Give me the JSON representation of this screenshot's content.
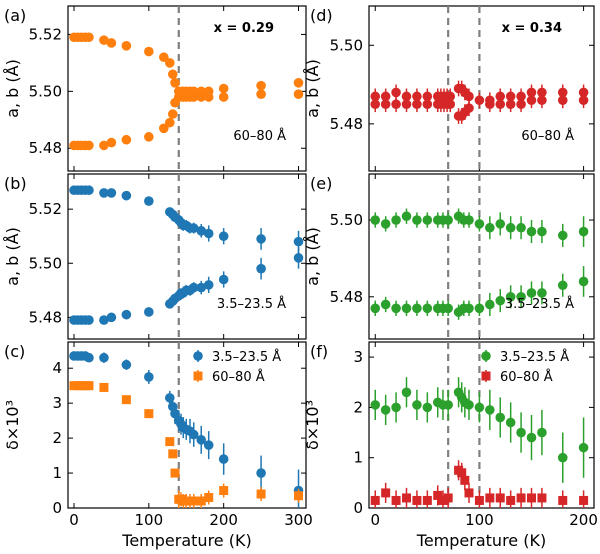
{
  "colors": {
    "blue": "#1f77b4",
    "orange": "#ff7f0e",
    "green": "#2ca02c",
    "red": "#d62728",
    "dashed": "#808080"
  },
  "chart_data": [
    {
      "panel": "(a)",
      "type": "scatter",
      "annotation_bold": "x = 0.29",
      "annotation": "60–80 Å",
      "ylabel": "a, b (Å)",
      "ylim": [
        5.472,
        5.53
      ],
      "yticks": [
        "5.48",
        "5.50",
        "5.52"
      ],
      "xlim": [
        -8,
        310
      ],
      "vlines": [
        140
      ],
      "series": [
        {
          "color": "orange",
          "marker": "circle",
          "x": [
            0,
            5,
            10,
            15,
            20,
            40,
            50,
            70,
            100,
            120,
            128,
            132,
            135,
            140,
            145,
            150,
            155,
            160,
            170,
            180,
            200,
            250,
            300
          ],
          "y": [
            5.519,
            5.519,
            5.519,
            5.519,
            5.519,
            5.518,
            5.517,
            5.516,
            5.514,
            5.512,
            5.51,
            5.506,
            5.503,
            5.5,
            5.5,
            5.5,
            5.5,
            5.5,
            5.5,
            5.5,
            5.501,
            5.502,
            5.503
          ]
        },
        {
          "color": "orange",
          "marker": "circle",
          "x": [
            0,
            5,
            10,
            15,
            20,
            40,
            50,
            70,
            100,
            120,
            128,
            132,
            135,
            140,
            145,
            150,
            155,
            160,
            170,
            180,
            200,
            250,
            300
          ],
          "y": [
            5.481,
            5.481,
            5.481,
            5.481,
            5.481,
            5.481,
            5.482,
            5.483,
            5.484,
            5.487,
            5.489,
            5.492,
            5.496,
            5.498,
            5.498,
            5.498,
            5.498,
            5.498,
            5.498,
            5.498,
            5.498,
            5.499,
            5.499
          ]
        }
      ]
    },
    {
      "panel": "(b)",
      "type": "scatter",
      "annotation": "3.5–23.5 Å",
      "ylabel": "a, b (Å)",
      "ylim": [
        5.472,
        5.533
      ],
      "yticks": [
        "5.48",
        "5.50",
        "5.52"
      ],
      "xlim": [
        -8,
        310
      ],
      "vlines": [
        140
      ],
      "series": [
        {
          "color": "blue",
          "marker": "circle",
          "x": [
            0,
            5,
            10,
            15,
            20,
            40,
            50,
            70,
            100,
            128,
            132,
            135,
            140,
            143,
            146,
            150,
            155,
            160,
            170,
            180,
            200,
            250,
            300
          ],
          "y": [
            5.527,
            5.527,
            5.527,
            5.527,
            5.527,
            5.526,
            5.526,
            5.525,
            5.523,
            5.519,
            5.518,
            5.517,
            5.516,
            5.515,
            5.514,
            5.514,
            5.513,
            5.513,
            5.512,
            5.511,
            5.51,
            5.509,
            5.508
          ],
          "err": [
            0.0005,
            0.0005,
            0.0005,
            0.0005,
            0.0005,
            0.0005,
            0.0005,
            0.0005,
            0.0005,
            0.001,
            0.001,
            0.001,
            0.0015,
            0.0015,
            0.002,
            0.002,
            0.002,
            0.002,
            0.0025,
            0.003,
            0.003,
            0.004,
            0.004
          ]
        },
        {
          "color": "blue",
          "marker": "circle",
          "x": [
            0,
            5,
            10,
            15,
            20,
            40,
            50,
            70,
            100,
            128,
            132,
            135,
            140,
            143,
            146,
            150,
            155,
            160,
            170,
            180,
            200,
            250,
            300
          ],
          "y": [
            5.479,
            5.479,
            5.479,
            5.479,
            5.479,
            5.479,
            5.48,
            5.481,
            5.482,
            5.485,
            5.486,
            5.487,
            5.488,
            5.489,
            5.489,
            5.49,
            5.49,
            5.491,
            5.491,
            5.492,
            5.494,
            5.498,
            5.502
          ],
          "err": [
            0.0005,
            0.0005,
            0.0005,
            0.0005,
            0.0005,
            0.0005,
            0.0005,
            0.0005,
            0.0005,
            0.001,
            0.001,
            0.001,
            0.0015,
            0.0015,
            0.002,
            0.002,
            0.002,
            0.002,
            0.0025,
            0.003,
            0.003,
            0.004,
            0.004
          ]
        }
      ]
    },
    {
      "panel": "(c)",
      "type": "scatter",
      "ylabel": "δ×10³",
      "ylim": [
        0,
        4.75
      ],
      "yticks": [
        "0",
        "1",
        "2",
        "3",
        "4"
      ],
      "xlabel": "Temperature (K)",
      "xlim": [
        -8,
        310
      ],
      "xticks": [
        "0",
        "100",
        "200",
        "300"
      ],
      "vlines": [
        140
      ],
      "legend": [
        "3.5–23.5 Å",
        "60–80 Å"
      ],
      "legend_position": "top-right",
      "series": [
        {
          "name": "3.5–23.5 Å",
          "color": "blue",
          "marker": "circle",
          "x": [
            0,
            5,
            10,
            15,
            20,
            40,
            70,
            100,
            128,
            132,
            135,
            140,
            143,
            146,
            150,
            155,
            160,
            170,
            180,
            200,
            250,
            300
          ],
          "y": [
            4.35,
            4.35,
            4.35,
            4.35,
            4.3,
            4.3,
            4.1,
            3.75,
            3.15,
            2.9,
            2.7,
            2.5,
            2.4,
            2.3,
            2.25,
            2.2,
            2.1,
            1.95,
            1.8,
            1.4,
            1.0,
            0.5
          ],
          "err": [
            0.1,
            0.1,
            0.1,
            0.1,
            0.1,
            0.15,
            0.15,
            0.2,
            0.2,
            0.25,
            0.3,
            0.3,
            0.3,
            0.3,
            0.3,
            0.35,
            0.35,
            0.4,
            0.4,
            0.45,
            0.5,
            0.6
          ]
        },
        {
          "name": "60–80 Å",
          "color": "orange",
          "marker": "square",
          "x": [
            0,
            5,
            10,
            15,
            20,
            40,
            70,
            100,
            128,
            132,
            135,
            140,
            143,
            146,
            150,
            155,
            160,
            170,
            180,
            200,
            250,
            300
          ],
          "y": [
            3.5,
            3.5,
            3.5,
            3.5,
            3.5,
            3.45,
            3.1,
            2.7,
            1.9,
            1.55,
            1.0,
            0.25,
            0.25,
            0.2,
            0.2,
            0.2,
            0.2,
            0.2,
            0.3,
            0.5,
            0.4,
            0.35
          ],
          "err": [
            0,
            0,
            0,
            0,
            0,
            0,
            0,
            0,
            0,
            0,
            0,
            0.25,
            0.2,
            0.2,
            0.2,
            0.2,
            0.2,
            0.2,
            0.2,
            0.2,
            0.2,
            0.2
          ]
        }
      ]
    },
    {
      "panel": "(d)",
      "type": "scatter",
      "annotation_bold": "x = 0.34",
      "annotation": "60–80 Å",
      "ylabel": "a, b (Å)",
      "ylim": [
        5.468,
        5.51
      ],
      "yticks": [
        "5.48",
        "5.50"
      ],
      "xlim": [
        -6,
        210
      ],
      "vlines": [
        70,
        100
      ],
      "series": [
        {
          "color": "red",
          "marker": "circle",
          "x": [
            0,
            10,
            20,
            30,
            40,
            50,
            60,
            63,
            66,
            69,
            72,
            80,
            83,
            86,
            90,
            100,
            110,
            120,
            130,
            140,
            150,
            160,
            180,
            200
          ],
          "y": [
            5.487,
            5.487,
            5.488,
            5.487,
            5.487,
            5.487,
            5.487,
            5.487,
            5.487,
            5.487,
            5.487,
            5.489,
            5.489,
            5.488,
            5.487,
            5.486,
            5.486,
            5.487,
            5.487,
            5.487,
            5.488,
            5.488,
            5.488,
            5.488
          ],
          "err": [
            0.002,
            0.002,
            0.002,
            0.002,
            0.002,
            0.002,
            0.002,
            0.002,
            0.002,
            0.002,
            0.002,
            0.002,
            0.002,
            0.002,
            0.002,
            0.002,
            0.002,
            0.002,
            0.002,
            0.002,
            0.002,
            0.002,
            0.002,
            0.002
          ]
        },
        {
          "color": "red",
          "marker": "circle",
          "x": [
            0,
            10,
            20,
            30,
            40,
            50,
            60,
            63,
            66,
            69,
            72,
            80,
            83,
            86,
            90,
            110,
            120,
            130,
            140,
            150,
            160,
            180,
            200
          ],
          "y": [
            5.485,
            5.485,
            5.485,
            5.485,
            5.485,
            5.485,
            5.485,
            5.485,
            5.485,
            5.485,
            5.485,
            5.482,
            5.482,
            5.483,
            5.484,
            5.485,
            5.485,
            5.485,
            5.485,
            5.486,
            5.486,
            5.486,
            5.486
          ],
          "err": [
            0.002,
            0.002,
            0.002,
            0.002,
            0.002,
            0.002,
            0.002,
            0.002,
            0.002,
            0.002,
            0.002,
            0.002,
            0.002,
            0.002,
            0.002,
            0.002,
            0.002,
            0.002,
            0.002,
            0.002,
            0.002,
            0.002,
            0.002
          ]
        }
      ]
    },
    {
      "panel": "(e)",
      "type": "scatter",
      "annotation": "3.5–23.5 Å",
      "ylabel": "a, b (Å)",
      "ylim": [
        5.469,
        5.512
      ],
      "yticks": [
        "5.48",
        "5.50"
      ],
      "xlim": [
        -6,
        210
      ],
      "vlines": [
        70,
        100
      ],
      "series": [
        {
          "color": "green",
          "marker": "circle",
          "x": [
            0,
            10,
            20,
            30,
            40,
            50,
            60,
            65,
            70,
            80,
            85,
            90,
            100,
            110,
            120,
            130,
            140,
            150,
            160,
            180,
            200
          ],
          "y": [
            5.5,
            5.499,
            5.5,
            5.501,
            5.5,
            5.5,
            5.5,
            5.5,
            5.5,
            5.501,
            5.5,
            5.5,
            5.499,
            5.498,
            5.499,
            5.498,
            5.498,
            5.497,
            5.497,
            5.496,
            5.497
          ],
          "err": [
            0.002,
            0.002,
            0.002,
            0.002,
            0.002,
            0.002,
            0.002,
            0.002,
            0.002,
            0.002,
            0.002,
            0.002,
            0.002,
            0.003,
            0.003,
            0.003,
            0.003,
            0.003,
            0.003,
            0.003,
            0.004
          ]
        },
        {
          "color": "green",
          "marker": "circle",
          "x": [
            0,
            10,
            20,
            30,
            40,
            50,
            60,
            65,
            70,
            80,
            85,
            90,
            100,
            110,
            120,
            130,
            140,
            150,
            160,
            180,
            200
          ],
          "y": [
            5.477,
            5.478,
            5.477,
            5.477,
            5.477,
            5.477,
            5.477,
            5.477,
            5.477,
            5.476,
            5.477,
            5.477,
            5.477,
            5.478,
            5.479,
            5.48,
            5.48,
            5.481,
            5.481,
            5.483,
            5.484
          ],
          "err": [
            0.002,
            0.002,
            0.002,
            0.002,
            0.002,
            0.002,
            0.002,
            0.002,
            0.002,
            0.002,
            0.002,
            0.002,
            0.002,
            0.003,
            0.003,
            0.003,
            0.003,
            0.003,
            0.003,
            0.003,
            0.004
          ]
        }
      ]
    },
    {
      "panel": "(f)",
      "type": "scatter",
      "ylabel": "δ×10³",
      "ylim": [
        0,
        3.3
      ],
      "yticks": [
        "0",
        "1",
        "2",
        "3"
      ],
      "xlabel": "Temperature (K)",
      "xlim": [
        -6,
        210
      ],
      "xticks": [
        "0",
        "100",
        "200"
      ],
      "vlines": [
        70,
        100
      ],
      "legend": [
        "3.5–23.5 Å",
        "60–80 Å"
      ],
      "legend_position": "top-right",
      "series": [
        {
          "name": "3.5–23.5 Å",
          "color": "green",
          "marker": "circle",
          "x": [
            0,
            10,
            20,
            30,
            40,
            50,
            60,
            65,
            70,
            80,
            83,
            86,
            90,
            100,
            110,
            120,
            130,
            140,
            150,
            160,
            180,
            200
          ],
          "y": [
            2.05,
            1.95,
            2.0,
            2.3,
            2.05,
            2.0,
            2.1,
            2.05,
            2.05,
            2.3,
            2.2,
            2.1,
            2.05,
            2.0,
            1.95,
            1.8,
            1.7,
            1.5,
            1.4,
            1.5,
            1.0,
            1.2
          ],
          "err": [
            0.3,
            0.3,
            0.3,
            0.3,
            0.3,
            0.3,
            0.3,
            0.3,
            0.3,
            0.3,
            0.3,
            0.3,
            0.3,
            0.3,
            0.4,
            0.4,
            0.4,
            0.4,
            0.45,
            0.45,
            0.5,
            0.6
          ]
        },
        {
          "name": "60–80 Å",
          "color": "red",
          "marker": "square",
          "x": [
            0,
            10,
            20,
            30,
            40,
            50,
            60,
            65,
            70,
            80,
            83,
            86,
            90,
            100,
            110,
            120,
            130,
            140,
            150,
            160,
            180,
            200
          ],
          "y": [
            0.15,
            0.3,
            0.15,
            0.2,
            0.15,
            0.15,
            0.25,
            0.15,
            0.2,
            0.75,
            0.7,
            0.55,
            0.3,
            0.15,
            0.2,
            0.2,
            0.15,
            0.2,
            0.2,
            0.2,
            0.15,
            0.15
          ],
          "err": [
            0.2,
            0.2,
            0.2,
            0.2,
            0.2,
            0.2,
            0.2,
            0.2,
            0.2,
            0.2,
            0.2,
            0.2,
            0.2,
            0.2,
            0.2,
            0.2,
            0.2,
            0.2,
            0.2,
            0.2,
            0.2,
            0.2
          ]
        }
      ]
    }
  ]
}
